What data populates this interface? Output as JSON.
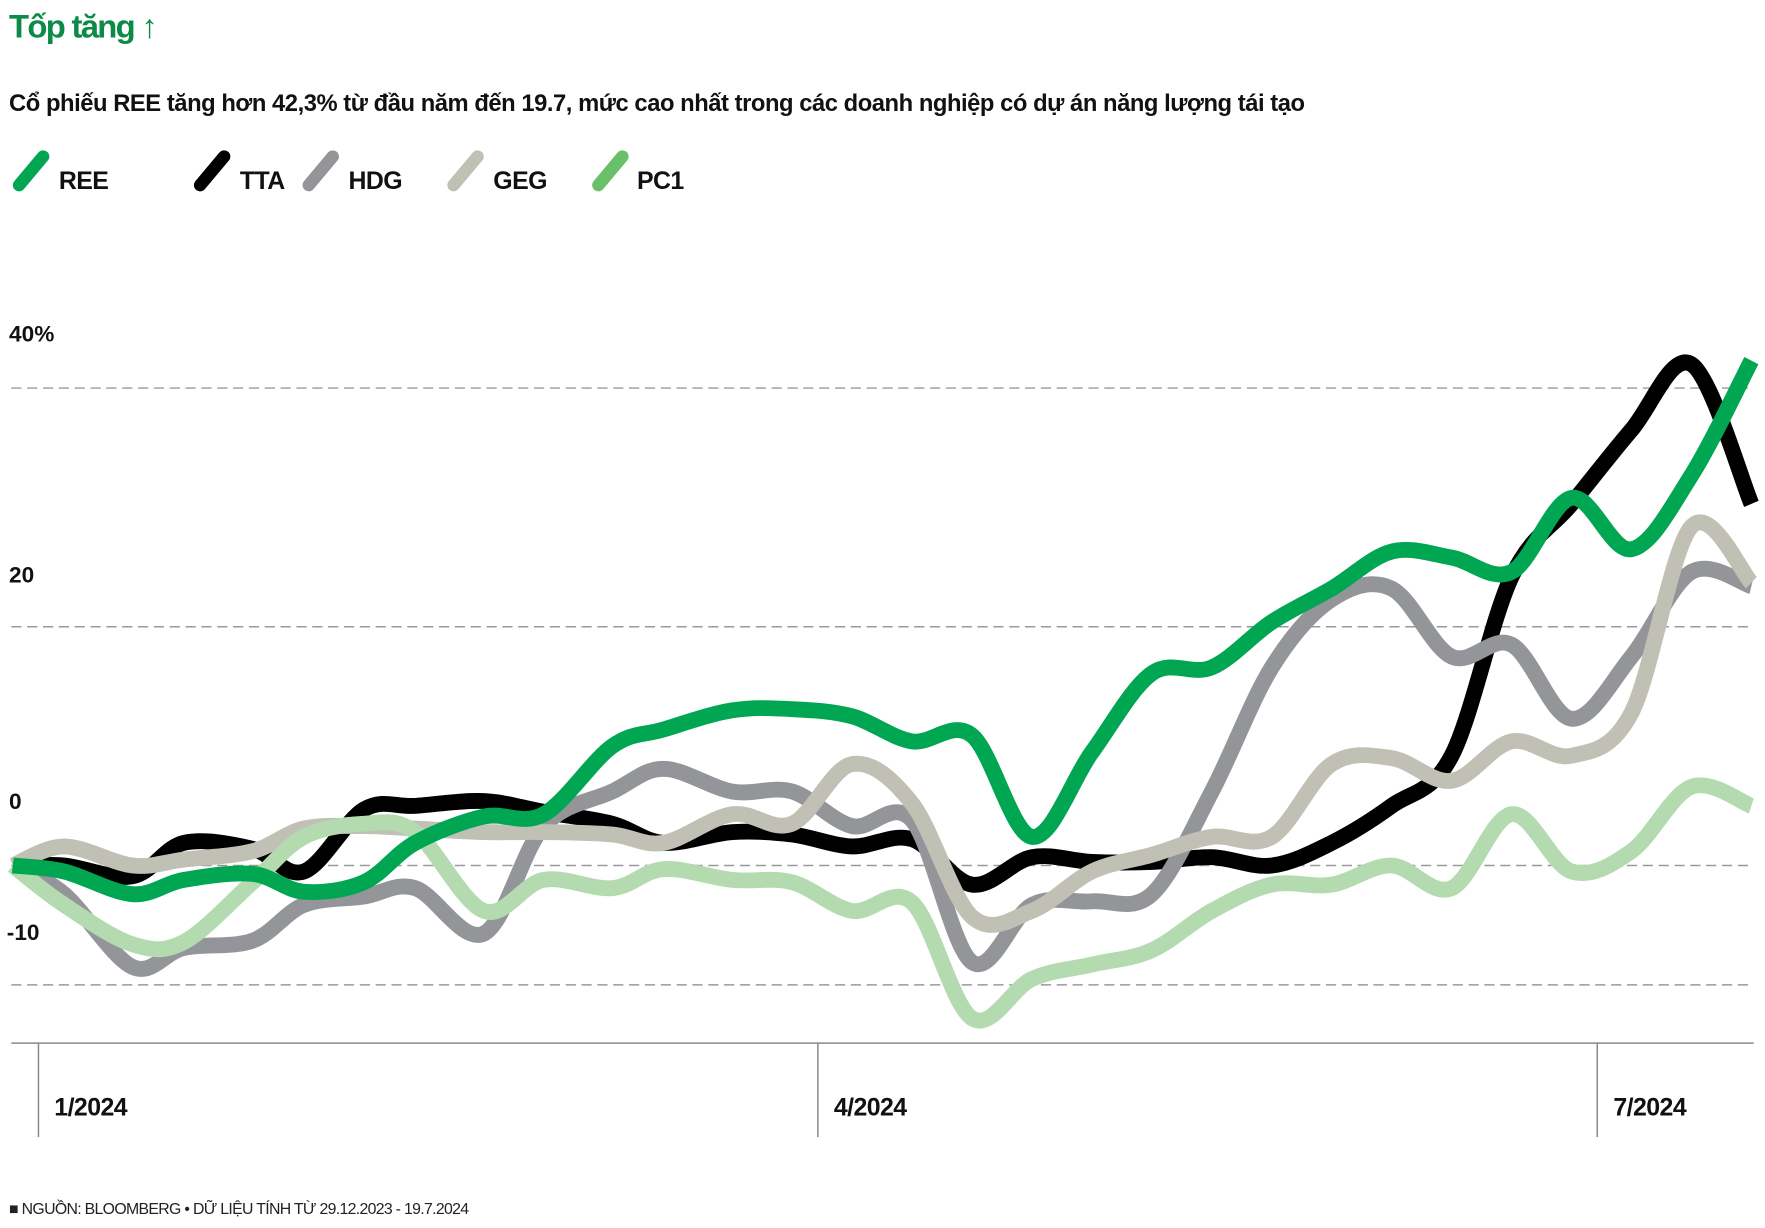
{
  "header": {
    "title": "Tốp tăng ↑",
    "title_color": "#0b8a48",
    "subtitle": "Cổ phiếu REE tăng hơn 42,3% từ đầu năm đến 19.7, mức cao nhất trong các doanh nghiệp có dự án năng lượng tái tạo"
  },
  "footer": "■ NGUỒN: BLOOMBERG • DỮ LIỆU TÍNH TỪ 29.12.2023 - 19.7.2024",
  "chart_data": {
    "type": "line",
    "title": "Tốp tăng ↑",
    "xlabel": "",
    "ylabel": "",
    "ylim": [
      -15,
      45
    ],
    "y_unit": "%",
    "y_gridlines": [
      40,
      20,
      0,
      -10
    ],
    "y_tick_labels": [
      "40%",
      "20",
      "0",
      "-10"
    ],
    "x_range": [
      "2023-12-29",
      "2024-07-19"
    ],
    "x_ticks": [
      {
        "date": "2024-01-01",
        "label": "1/2024"
      },
      {
        "date": "2024-04-01",
        "label": "4/2024"
      },
      {
        "date": "2024-07-01",
        "label": "7/2024"
      }
    ],
    "grid": true,
    "legend_position": "top-left",
    "x": [
      "2023-12-29",
      "2024-01-04",
      "2024-01-12",
      "2024-01-18",
      "2024-01-26",
      "2024-02-01",
      "2024-02-08",
      "2024-02-14",
      "2024-02-22",
      "2024-02-29",
      "2024-03-08",
      "2024-03-14",
      "2024-03-22",
      "2024-03-29",
      "2024-04-05",
      "2024-04-12",
      "2024-04-19",
      "2024-04-26",
      "2024-05-03",
      "2024-05-10",
      "2024-05-17",
      "2024-05-24",
      "2024-05-31",
      "2024-06-07",
      "2024-06-14",
      "2024-06-21",
      "2024-06-28",
      "2024-07-05",
      "2024-07-12",
      "2024-07-19"
    ],
    "series": [
      {
        "name": "TTA",
        "color": "#000000",
        "legend_color": "#000000",
        "values": [
          0,
          0,
          -0.9,
          1.9,
          1.4,
          -0.5,
          4.7,
          5.0,
          5.4,
          4.5,
          3.5,
          1.9,
          2.8,
          2.6,
          1.6,
          2.2,
          -1.6,
          0.7,
          0.3,
          0.3,
          0.7,
          0,
          1.9,
          5.0,
          9.2,
          24.2,
          30.3,
          36.5,
          42.0,
          30.3
        ]
      },
      {
        "name": "HDG",
        "color": "#939598",
        "legend_color": "#939598",
        "values": [
          0,
          -2.4,
          -8.5,
          -6.9,
          -6.3,
          -3.3,
          -2.6,
          -1.9,
          -5.7,
          3.3,
          6.2,
          8.1,
          6.2,
          6.2,
          3.3,
          3.8,
          -8.1,
          -3.3,
          -3.0,
          -2.4,
          6.2,
          16.6,
          22.3,
          23.2,
          17.5,
          18.5,
          12.3,
          17.5,
          24.6,
          23.4
        ]
      },
      {
        "name": "GEG",
        "color": "#c0c0b4",
        "legend_color": "#c0c0b4",
        "values": [
          0,
          1.6,
          0,
          0.5,
          1.2,
          3.1,
          3.3,
          3.1,
          2.8,
          2.8,
          2.6,
          1.9,
          4.3,
          3.5,
          8.5,
          5.2,
          -4.3,
          -3.8,
          -0.5,
          0.9,
          2.4,
          2.4,
          8.5,
          9.0,
          7.1,
          10.4,
          9.2,
          12.8,
          28.4,
          23.7
        ]
      },
      {
        "name": "PC1",
        "color": "#b4dbb0",
        "legend_color": "#6abf69",
        "values": [
          0,
          -3.3,
          -6.6,
          -6.4,
          -1.4,
          2.4,
          3.5,
          2.8,
          -3.8,
          -1.2,
          -1.9,
          -0.3,
          -1.2,
          -1.4,
          -3.8,
          -3.1,
          -12.8,
          -9.5,
          -8.3,
          -7.1,
          -3.8,
          -1.6,
          -1.6,
          0,
          -1.9,
          4.3,
          -0.5,
          1.2,
          6.6,
          5.0
        ]
      },
      {
        "name": "REE",
        "color": "#00a651",
        "legend_color": "#00a651",
        "values": [
          0,
          -0.5,
          -2.4,
          -1.2,
          -0.7,
          -2.2,
          -1.4,
          1.9,
          4.1,
          4.3,
          10.0,
          11.4,
          13.0,
          13.1,
          12.5,
          10.4,
          10.9,
          2.4,
          9.5,
          16.1,
          16.6,
          20.4,
          23.2,
          26.3,
          25.8,
          24.6,
          30.8,
          26.5,
          32.7,
          42.3
        ]
      }
    ]
  },
  "legend": [
    {
      "label": "REE",
      "color": "#00a651"
    },
    {
      "label": "TTA",
      "color": "#000000"
    },
    {
      "label": "HDG",
      "color": "#939598"
    },
    {
      "label": "GEG",
      "color": "#c0c0b4"
    },
    {
      "label": "PC1",
      "color": "#6abf69"
    }
  ]
}
